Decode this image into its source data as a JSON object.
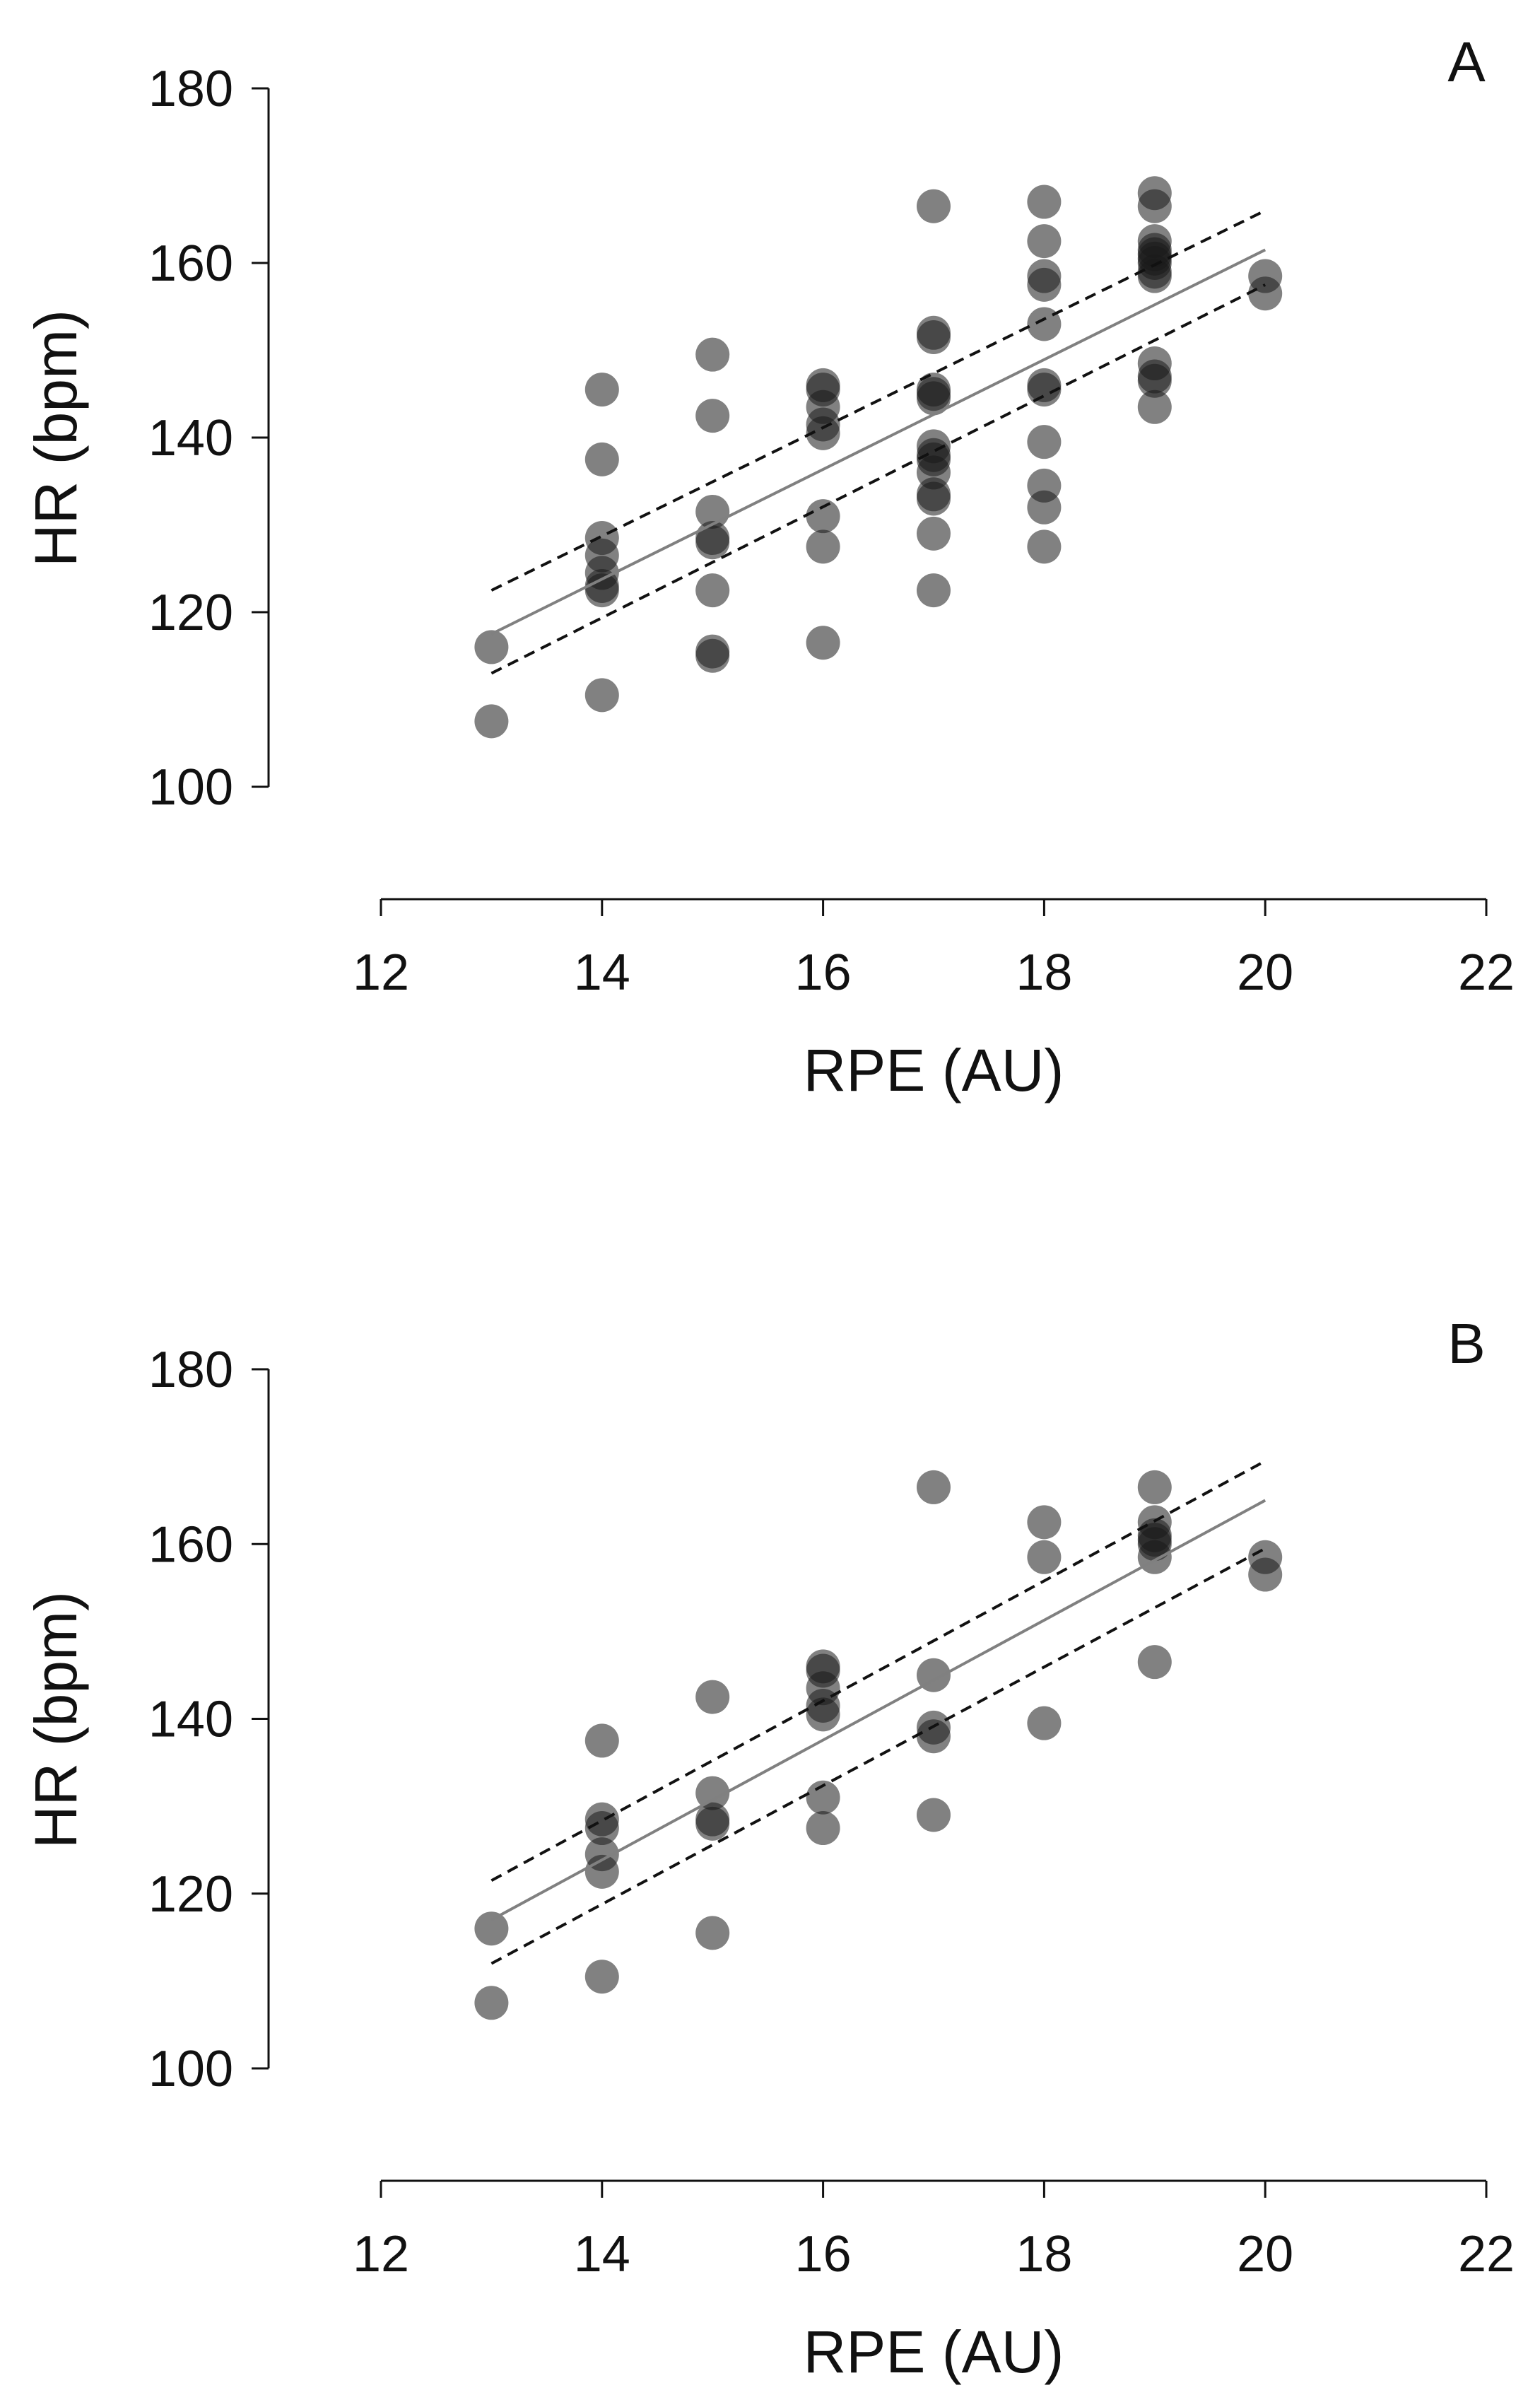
{
  "chart_data": [
    {
      "type": "scatter",
      "panel_label": "A",
      "xlabel": "RPE (AU)",
      "ylabel": "HR (bpm)",
      "xlim": [
        12,
        22
      ],
      "ylim": [
        100,
        180
      ],
      "xticks": [
        "12",
        "14",
        "16",
        "18",
        "20",
        "22"
      ],
      "yticks": [
        "100",
        "120",
        "140",
        "160",
        "180"
      ],
      "grid": false,
      "points": [
        {
          "x": 13,
          "y": 116
        },
        {
          "x": 13,
          "y": 107.5
        },
        {
          "x": 14,
          "y": 145.5
        },
        {
          "x": 14,
          "y": 137.5
        },
        {
          "x": 14,
          "y": 128.5
        },
        {
          "x": 14,
          "y": 126.5
        },
        {
          "x": 14,
          "y": 124.5
        },
        {
          "x": 14,
          "y": 123
        },
        {
          "x": 14,
          "y": 122.5
        },
        {
          "x": 14,
          "y": 110.5
        },
        {
          "x": 15,
          "y": 149.5
        },
        {
          "x": 15,
          "y": 142.5
        },
        {
          "x": 15,
          "y": 131.5
        },
        {
          "x": 15,
          "y": 128.5
        },
        {
          "x": 15,
          "y": 128
        },
        {
          "x": 15,
          "y": 122.5
        },
        {
          "x": 15,
          "y": 115.5
        },
        {
          "x": 15,
          "y": 115
        },
        {
          "x": 16,
          "y": 146
        },
        {
          "x": 16,
          "y": 145.5
        },
        {
          "x": 16,
          "y": 143.5
        },
        {
          "x": 16,
          "y": 141.5
        },
        {
          "x": 16,
          "y": 140.5
        },
        {
          "x": 16,
          "y": 131
        },
        {
          "x": 16,
          "y": 127.5
        },
        {
          "x": 16,
          "y": 116.5
        },
        {
          "x": 17,
          "y": 166.5
        },
        {
          "x": 17,
          "y": 152
        },
        {
          "x": 17,
          "y": 151.5
        },
        {
          "x": 17,
          "y": 145.5
        },
        {
          "x": 17,
          "y": 145
        },
        {
          "x": 17,
          "y": 144.5
        },
        {
          "x": 17,
          "y": 139
        },
        {
          "x": 17,
          "y": 138
        },
        {
          "x": 17,
          "y": 137.5
        },
        {
          "x": 17,
          "y": 136
        },
        {
          "x": 17,
          "y": 133.5
        },
        {
          "x": 17,
          "y": 133
        },
        {
          "x": 17,
          "y": 129
        },
        {
          "x": 17,
          "y": 122.5
        },
        {
          "x": 18,
          "y": 167
        },
        {
          "x": 18,
          "y": 162.5
        },
        {
          "x": 18,
          "y": 158.5
        },
        {
          "x": 18,
          "y": 157.5
        },
        {
          "x": 18,
          "y": 153
        },
        {
          "x": 18,
          "y": 146
        },
        {
          "x": 18,
          "y": 145.5
        },
        {
          "x": 18,
          "y": 139.5
        },
        {
          "x": 18,
          "y": 134.5
        },
        {
          "x": 18,
          "y": 132
        },
        {
          "x": 18,
          "y": 127.5
        },
        {
          "x": 19,
          "y": 168
        },
        {
          "x": 19,
          "y": 166.5
        },
        {
          "x": 19,
          "y": 162.5
        },
        {
          "x": 19,
          "y": 161.5
        },
        {
          "x": 19,
          "y": 161
        },
        {
          "x": 19,
          "y": 160.5
        },
        {
          "x": 19,
          "y": 160
        },
        {
          "x": 19,
          "y": 159
        },
        {
          "x": 19,
          "y": 158.5
        },
        {
          "x": 19,
          "y": 148.5
        },
        {
          "x": 19,
          "y": 147
        },
        {
          "x": 19,
          "y": 146.5
        },
        {
          "x": 19,
          "y": 143.5
        },
        {
          "x": 20,
          "y": 158.5
        },
        {
          "x": 20,
          "y": 156.5
        }
      ],
      "fit": {
        "x": [
          13,
          20
        ],
        "y": [
          117.5,
          161.5
        ]
      },
      "ci_upper": {
        "x": [
          13,
          20
        ],
        "y": [
          122.5,
          166
        ]
      },
      "ci_lower": {
        "x": [
          13,
          20
        ],
        "y": [
          113,
          157.5
        ]
      }
    },
    {
      "type": "scatter",
      "panel_label": "B",
      "xlabel": "RPE (AU)",
      "ylabel": "HR (bpm)",
      "xlim": [
        12,
        22
      ],
      "ylim": [
        100,
        180
      ],
      "xticks": [
        "12",
        "14",
        "16",
        "18",
        "20",
        "22"
      ],
      "yticks": [
        "100",
        "120",
        "140",
        "160",
        "180"
      ],
      "grid": false,
      "points": [
        {
          "x": 13,
          "y": 116
        },
        {
          "x": 13,
          "y": 107.5
        },
        {
          "x": 14,
          "y": 137.5
        },
        {
          "x": 14,
          "y": 128.5
        },
        {
          "x": 14,
          "y": 127.5
        },
        {
          "x": 14,
          "y": 124.5
        },
        {
          "x": 14,
          "y": 122.5
        },
        {
          "x": 14,
          "y": 110.5
        },
        {
          "x": 15,
          "y": 142.5
        },
        {
          "x": 15,
          "y": 131.5
        },
        {
          "x": 15,
          "y": 128.5
        },
        {
          "x": 15,
          "y": 128
        },
        {
          "x": 15,
          "y": 115.5
        },
        {
          "x": 16,
          "y": 146
        },
        {
          "x": 16,
          "y": 145.5
        },
        {
          "x": 16,
          "y": 143.5
        },
        {
          "x": 16,
          "y": 141.5
        },
        {
          "x": 16,
          "y": 140.5
        },
        {
          "x": 16,
          "y": 131
        },
        {
          "x": 16,
          "y": 127.5
        },
        {
          "x": 17,
          "y": 166.5
        },
        {
          "x": 17,
          "y": 145
        },
        {
          "x": 17,
          "y": 139
        },
        {
          "x": 17,
          "y": 138
        },
        {
          "x": 17,
          "y": 129
        },
        {
          "x": 18,
          "y": 162.5
        },
        {
          "x": 18,
          "y": 158.5
        },
        {
          "x": 18,
          "y": 139.5
        },
        {
          "x": 19,
          "y": 166.5
        },
        {
          "x": 19,
          "y": 162.5
        },
        {
          "x": 19,
          "y": 161
        },
        {
          "x": 19,
          "y": 160.5
        },
        {
          "x": 19,
          "y": 160
        },
        {
          "x": 19,
          "y": 158.5
        },
        {
          "x": 19,
          "y": 146.5
        },
        {
          "x": 20,
          "y": 158.5
        },
        {
          "x": 20,
          "y": 156.5
        }
      ],
      "fit": {
        "x": [
          13,
          20
        ],
        "y": [
          117,
          165
        ]
      },
      "ci_upper": {
        "x": [
          13,
          20
        ],
        "y": [
          121.5,
          169.5
        ]
      },
      "ci_lower": {
        "x": [
          13,
          20
        ],
        "y": [
          112,
          159.5
        ]
      }
    }
  ]
}
